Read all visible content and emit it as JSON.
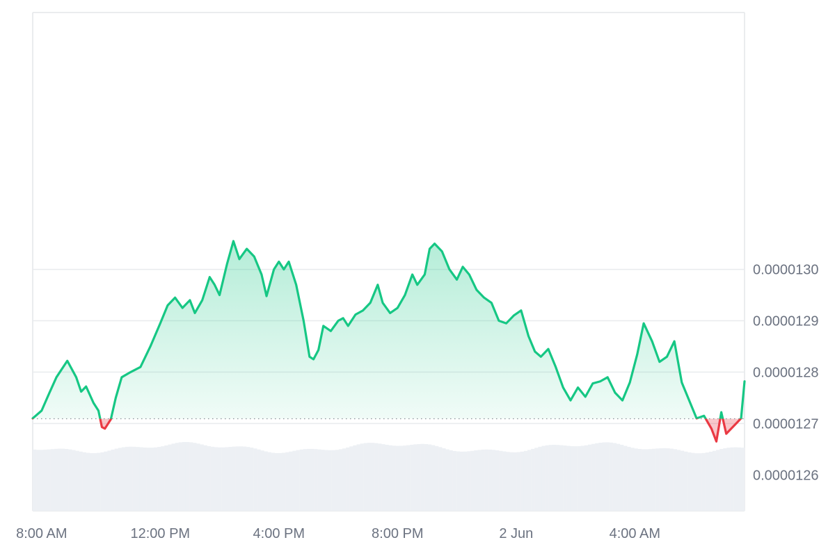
{
  "chart_data": {
    "type": "area",
    "baseline": 1.27093e-05,
    "ylim": [
      1.253e-05,
      1.35e-05
    ],
    "y_ticks": [
      {
        "value": 1.26e-05,
        "label": "0.0000126"
      },
      {
        "value": 1.27e-05,
        "label": "0.0000127"
      },
      {
        "value": 1.28e-05,
        "label": "0.0000128"
      },
      {
        "value": 1.29e-05,
        "label": "0.0000129"
      },
      {
        "value": 1.3e-05,
        "label": "0.0000130"
      }
    ],
    "xlim": [
      "2024-06-01T07:42",
      "2024-06-02T07:42"
    ],
    "x_ticks": [
      {
        "value": "2024-06-01T08:00",
        "label": "8:00 AM"
      },
      {
        "value": "2024-06-01T12:00",
        "label": "12:00 PM"
      },
      {
        "value": "2024-06-01T16:00",
        "label": "4:00 PM"
      },
      {
        "value": "2024-06-01T20:00",
        "label": "8:00 PM"
      },
      {
        "value": "2024-06-02T00:00",
        "label": "2 Jun"
      },
      {
        "value": "2024-06-02T04:00",
        "label": "4:00 AM"
      }
    ],
    "price_series": {
      "name": "",
      "points": [
        [
          "2024-06-01T07:42",
          1.271e-05
        ],
        [
          "2024-06-01T08:00",
          1.2725e-05
        ],
        [
          "2024-06-01T08:15",
          1.2758e-05
        ],
        [
          "2024-06-01T08:30",
          1.279e-05
        ],
        [
          "2024-06-01T08:52",
          1.2822e-05
        ],
        [
          "2024-06-01T09:10",
          1.279e-05
        ],
        [
          "2024-06-01T09:20",
          1.2762e-05
        ],
        [
          "2024-06-01T09:30",
          1.2772e-05
        ],
        [
          "2024-06-01T09:45",
          1.274e-05
        ],
        [
          "2024-06-01T09:55",
          1.2725e-05
        ],
        [
          "2024-06-01T10:02",
          1.2693e-05
        ],
        [
          "2024-06-01T10:08",
          1.269e-05
        ],
        [
          "2024-06-01T10:20",
          1.2708e-05
        ],
        [
          "2024-06-01T10:30",
          1.275e-05
        ],
        [
          "2024-06-01T10:42",
          1.279e-05
        ],
        [
          "2024-06-01T11:00",
          1.28e-05
        ],
        [
          "2024-06-01T11:20",
          1.281e-05
        ],
        [
          "2024-06-01T11:40",
          1.285e-05
        ],
        [
          "2024-06-01T12:00",
          1.2895e-05
        ],
        [
          "2024-06-01T12:15",
          1.293e-05
        ],
        [
          "2024-06-01T12:30",
          1.2945e-05
        ],
        [
          "2024-06-01T12:45",
          1.2925e-05
        ],
        [
          "2024-06-01T13:00",
          1.294e-05
        ],
        [
          "2024-06-01T13:10",
          1.2915e-05
        ],
        [
          "2024-06-01T13:25",
          1.294e-05
        ],
        [
          "2024-06-01T13:40",
          1.2985e-05
        ],
        [
          "2024-06-01T13:50",
          1.297e-05
        ],
        [
          "2024-06-01T14:00",
          1.295e-05
        ],
        [
          "2024-06-01T14:15",
          1.301e-05
        ],
        [
          "2024-06-01T14:28",
          1.3055e-05
        ],
        [
          "2024-06-01T14:40",
          1.302e-05
        ],
        [
          "2024-06-01T14:55",
          1.304e-05
        ],
        [
          "2024-06-01T15:10",
          1.3025e-05
        ],
        [
          "2024-06-01T15:25",
          1.299e-05
        ],
        [
          "2024-06-01T15:35",
          1.2948e-05
        ],
        [
          "2024-06-01T15:50",
          1.3e-05
        ],
        [
          "2024-06-01T16:00",
          1.3015e-05
        ],
        [
          "2024-06-01T16:10",
          1.3e-05
        ],
        [
          "2024-06-01T16:20",
          1.3015e-05
        ],
        [
          "2024-06-01T16:35",
          1.297e-05
        ],
        [
          "2024-06-01T16:50",
          1.29e-05
        ],
        [
          "2024-06-01T17:02",
          1.283e-05
        ],
        [
          "2024-06-01T17:10",
          1.2825e-05
        ],
        [
          "2024-06-01T17:20",
          1.2843e-05
        ],
        [
          "2024-06-01T17:30",
          1.289e-05
        ],
        [
          "2024-06-01T17:45",
          1.288e-05
        ],
        [
          "2024-06-01T18:00",
          1.29e-05
        ],
        [
          "2024-06-01T18:10",
          1.2905e-05
        ],
        [
          "2024-06-01T18:20",
          1.289e-05
        ],
        [
          "2024-06-01T18:35",
          1.2912e-05
        ],
        [
          "2024-06-01T18:50",
          1.292e-05
        ],
        [
          "2024-06-01T19:05",
          1.2935e-05
        ],
        [
          "2024-06-01T19:20",
          1.297e-05
        ],
        [
          "2024-06-01T19:30",
          1.2935e-05
        ],
        [
          "2024-06-01T19:45",
          1.2915e-05
        ],
        [
          "2024-06-01T20:00",
          1.2925e-05
        ],
        [
          "2024-06-01T20:15",
          1.295e-05
        ],
        [
          "2024-06-01T20:30",
          1.299e-05
        ],
        [
          "2024-06-01T20:40",
          1.297e-05
        ],
        [
          "2024-06-01T20:55",
          1.299e-05
        ],
        [
          "2024-06-01T21:05",
          1.304e-05
        ],
        [
          "2024-06-01T21:15",
          1.305e-05
        ],
        [
          "2024-06-01T21:30",
          1.3035e-05
        ],
        [
          "2024-06-01T21:45",
          1.3e-05
        ],
        [
          "2024-06-01T22:00",
          1.298e-05
        ],
        [
          "2024-06-01T22:12",
          1.3005e-05
        ],
        [
          "2024-06-01T22:25",
          1.299e-05
        ],
        [
          "2024-06-01T22:40",
          1.296e-05
        ],
        [
          "2024-06-01T22:55",
          1.2945e-05
        ],
        [
          "2024-06-01T23:10",
          1.2935e-05
        ],
        [
          "2024-06-01T23:25",
          1.29e-05
        ],
        [
          "2024-06-01T23:40",
          1.2895e-05
        ],
        [
          "2024-06-01T23:55",
          1.291e-05
        ],
        [
          "2024-06-02T00:10",
          1.292e-05
        ],
        [
          "2024-06-02T00:25",
          1.287e-05
        ],
        [
          "2024-06-02T00:38",
          1.284e-05
        ],
        [
          "2024-06-02T00:50",
          1.283e-05
        ],
        [
          "2024-06-02T01:05",
          1.2845e-05
        ],
        [
          "2024-06-02T01:20",
          1.281e-05
        ],
        [
          "2024-06-02T01:35",
          1.277e-05
        ],
        [
          "2024-06-02T01:50",
          1.2745e-05
        ],
        [
          "2024-06-02T02:05",
          1.277e-05
        ],
        [
          "2024-06-02T02:20",
          1.2752e-05
        ],
        [
          "2024-06-02T02:35",
          1.2778e-05
        ],
        [
          "2024-06-02T02:50",
          1.2782e-05
        ],
        [
          "2024-06-02T03:05",
          1.279e-05
        ],
        [
          "2024-06-02T03:20",
          1.276e-05
        ],
        [
          "2024-06-02T03:35",
          1.2745e-05
        ],
        [
          "2024-06-02T03:50",
          1.278e-05
        ],
        [
          "2024-06-02T04:05",
          1.2835e-05
        ],
        [
          "2024-06-02T04:18",
          1.2895e-05
        ],
        [
          "2024-06-02T04:35",
          1.286e-05
        ],
        [
          "2024-06-02T04:50",
          1.282e-05
        ],
        [
          "2024-06-02T05:05",
          1.283e-05
        ],
        [
          "2024-06-02T05:20",
          1.286e-05
        ],
        [
          "2024-06-02T05:35",
          1.278e-05
        ],
        [
          "2024-06-02T05:50",
          1.2745e-05
        ],
        [
          "2024-06-02T06:05",
          1.271e-05
        ],
        [
          "2024-06-02T06:20",
          1.2715e-05
        ],
        [
          "2024-06-02T06:35",
          1.269e-05
        ],
        [
          "2024-06-02T06:45",
          1.2665e-05
        ],
        [
          "2024-06-02T06:55",
          1.2722e-05
        ],
        [
          "2024-06-02T07:05",
          1.268e-05
        ],
        [
          "2024-06-02T07:15",
          1.269e-05
        ],
        [
          "2024-06-02T07:25",
          1.27e-05
        ],
        [
          "2024-06-02T07:35",
          1.271e-05
        ],
        [
          "2024-06-02T07:42",
          1.2782e-05
        ]
      ]
    },
    "volume_level": 0.9,
    "colors": {
      "up_line": "#16c784",
      "down_line": "#ea3943",
      "up_fill": "#16c784",
      "down_fill": "#ea3943",
      "grid": "#e9ebee",
      "axis_text": "#6b7280",
      "volume": "#edf0f4"
    },
    "grid": true,
    "legend": "none"
  }
}
